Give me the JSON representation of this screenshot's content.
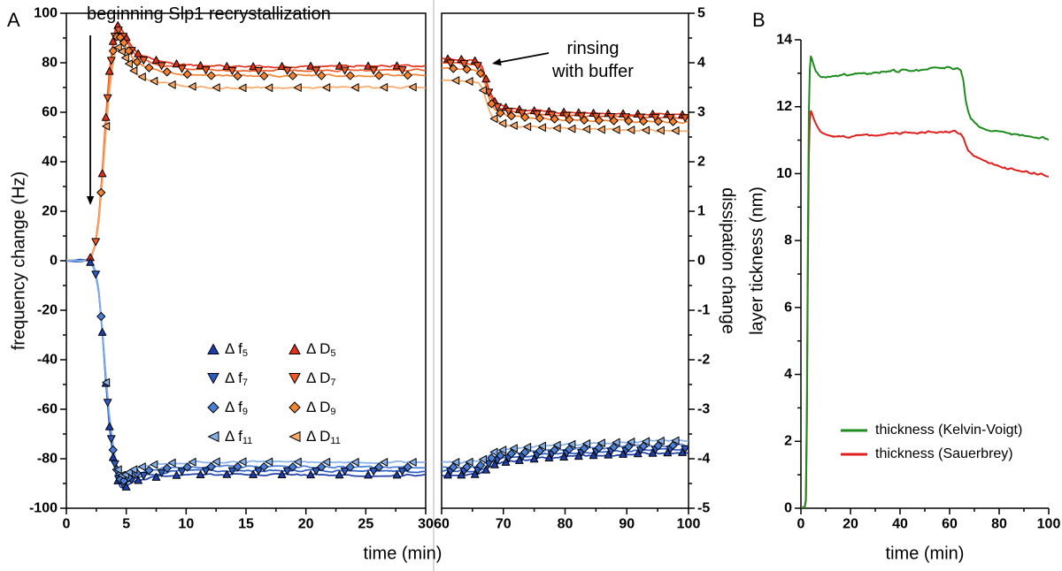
{
  "figure": {
    "panelA": {
      "label": "A",
      "axis": {
        "ylabel_left": "frequency change (Hz)",
        "ylabel_right": "dissipation change",
        "xlabel": "time (min)"
      },
      "annotation_recrystallization": "beginning Slp1 recrystallization",
      "annotation_rinsing_line1": "rinsing",
      "annotation_rinsing_line2": "with buffer",
      "legend": [
        {
          "prefix": "Δ f",
          "sub": "5",
          "color": "#1c3ea8",
          "marker": "triangle-up"
        },
        {
          "prefix": "Δ D",
          "sub": "5",
          "color": "#e03018",
          "marker": "triangle-up"
        },
        {
          "prefix": "Δ f",
          "sub": "7",
          "color": "#2b5cc4",
          "marker": "triangle-down"
        },
        {
          "prefix": "Δ D",
          "sub": "7",
          "color": "#ef5a24",
          "marker": "triangle-down"
        },
        {
          "prefix": "Δ f",
          "sub": "9",
          "color": "#4a7fd8",
          "marker": "diamond"
        },
        {
          "prefix": "Δ D",
          "sub": "9",
          "color": "#f5832e",
          "marker": "diamond"
        },
        {
          "prefix": "Δ f",
          "sub": "11",
          "color": "#85b0e8",
          "marker": "triangle-left"
        },
        {
          "prefix": "Δ D",
          "sub": "11",
          "color": "#f9a968",
          "marker": "triangle-left"
        }
      ]
    },
    "panelB": {
      "label": "B",
      "axis": {
        "ylabel": "layer tickness (nm)",
        "xlabel": "time (min)"
      }
    }
  },
  "chart_data": [
    {
      "type": "line",
      "panel": "A",
      "xlabel": "time (min)",
      "ylabel_left": "frequency change (Hz)",
      "ylabel_right": "dissipation change",
      "x_segments": [
        [
          0,
          30
        ],
        [
          60,
          100
        ]
      ],
      "axes": {
        "yleft": {
          "min": -100,
          "max": 100,
          "major": 20,
          "minor": 10
        },
        "yright": {
          "min": -5,
          "max": 5,
          "major": 1,
          "minor": 0.5
        },
        "xseg1": {
          "min": 0,
          "max": 30,
          "major": 5,
          "minor": 2.5
        },
        "xseg2": {
          "min": 60,
          "max": 100,
          "major": 10,
          "minor": 5
        }
      },
      "series_f": [
        {
          "name": "Δf5",
          "axis": "left",
          "color": "#1c3ea8",
          "marker": "triangle-up",
          "offset": -2.6
        },
        {
          "name": "Δf7",
          "axis": "left",
          "color": "#2b5cc4",
          "marker": "triangle-down",
          "offset": -1.0
        },
        {
          "name": "Δf9",
          "axis": "left",
          "color": "#4a7fd8",
          "marker": "diamond",
          "offset": 0.6
        },
        {
          "name": "Δf11",
          "axis": "left",
          "color": "#85b0e8",
          "marker": "triangle-left",
          "offset": 2.6
        }
      ],
      "series_d": [
        {
          "name": "ΔD5",
          "axis": "right",
          "color": "#e03018",
          "marker": "triangle-up",
          "offset": 0.13
        },
        {
          "name": "ΔD7",
          "axis": "right",
          "color": "#ef5a24",
          "marker": "triangle-down",
          "offset": 0.05
        },
        {
          "name": "ΔD9",
          "axis": "right",
          "color": "#f5832e",
          "marker": "diamond",
          "offset": -0.06
        },
        {
          "name": "ΔD11",
          "axis": "right",
          "color": "#f9a968",
          "marker": "triangle-left",
          "offset": -0.3
        }
      ],
      "freq_base_seg1": [
        [
          0,
          0
        ],
        [
          1,
          0
        ],
        [
          1.8,
          0
        ],
        [
          2.1,
          -1
        ],
        [
          2.4,
          -4
        ],
        [
          2.7,
          -12
        ],
        [
          3.0,
          -28
        ],
        [
          3.3,
          -48
        ],
        [
          3.6,
          -65
        ],
        [
          3.9,
          -77
        ],
        [
          4.2,
          -85
        ],
        [
          4.5,
          -89
        ],
        [
          4.8,
          -89.5
        ],
        [
          5.1,
          -88.5
        ],
        [
          5.5,
          -87.3
        ],
        [
          6,
          -86.2
        ],
        [
          7,
          -85.2
        ],
        [
          8,
          -84.6
        ],
        [
          9,
          -84.2
        ],
        [
          10,
          -84
        ],
        [
          12,
          -83.8
        ],
        [
          15,
          -83.8
        ],
        [
          20,
          -83.9
        ],
        [
          25,
          -84
        ],
        [
          30,
          -84
        ]
      ],
      "freq_base_seg2": [
        [
          60,
          -84
        ],
        [
          63,
          -84
        ],
        [
          65,
          -83.9
        ],
        [
          66,
          -83.6
        ],
        [
          66.8,
          -82.8
        ],
        [
          67.5,
          -81.3
        ],
        [
          68.2,
          -80.2
        ],
        [
          69,
          -79.5
        ],
        [
          70,
          -79
        ],
        [
          72,
          -78.3
        ],
        [
          75,
          -77.6
        ],
        [
          78,
          -77.1
        ],
        [
          80,
          -76.8
        ],
        [
          85,
          -76.2
        ],
        [
          90,
          -75.7
        ],
        [
          95,
          -75.3
        ],
        [
          100,
          -75
        ]
      ],
      "diss_base_seg1": [
        [
          0,
          0
        ],
        [
          1,
          0
        ],
        [
          1.8,
          0.02
        ],
        [
          2.1,
          0.08
        ],
        [
          2.4,
          0.3
        ],
        [
          2.7,
          0.8
        ],
        [
          3.0,
          1.7
        ],
        [
          3.3,
          2.8
        ],
        [
          3.6,
          3.7
        ],
        [
          3.9,
          4.3
        ],
        [
          4.1,
          4.55
        ],
        [
          4.3,
          4.62
        ],
        [
          4.6,
          4.55
        ],
        [
          5,
          4.38
        ],
        [
          5.5,
          4.18
        ],
        [
          6,
          4.05
        ],
        [
          7,
          3.95
        ],
        [
          8,
          3.89
        ],
        [
          9,
          3.85
        ],
        [
          10,
          3.83
        ],
        [
          12,
          3.8
        ],
        [
          15,
          3.79
        ],
        [
          20,
          3.8
        ],
        [
          25,
          3.8
        ],
        [
          30,
          3.81
        ]
      ],
      "diss_base_seg2": [
        [
          60,
          3.95
        ],
        [
          63,
          3.94
        ],
        [
          65,
          3.92
        ],
        [
          66,
          3.89
        ],
        [
          66.6,
          3.8
        ],
        [
          67.2,
          3.55
        ],
        [
          67.8,
          3.3
        ],
        [
          68.5,
          3.12
        ],
        [
          69.5,
          3.03
        ],
        [
          70.5,
          2.99
        ],
        [
          72,
          2.96
        ],
        [
          75,
          2.93
        ],
        [
          80,
          2.9
        ],
        [
          85,
          2.88
        ],
        [
          90,
          2.87
        ],
        [
          95,
          2.86
        ],
        [
          100,
          2.85
        ]
      ],
      "marker_times_seg1": [
        2.0,
        3.0,
        3.3,
        3.6,
        3.9,
        4.3,
        5.0,
        6.0,
        7.5,
        9.2,
        11.2,
        13.4,
        15.6,
        18.0,
        20.4,
        22.8,
        25.2,
        27.6
      ],
      "marker_times_seg2": [
        61,
        63.2,
        65.4,
        67.2,
        68.6,
        70.4,
        72.6,
        75,
        77.4,
        79.8,
        82.2,
        84.6,
        87,
        89.4,
        91.8,
        94.2,
        96.6,
        99
      ],
      "noise": {
        "freq": 0.6,
        "diss": 0.03
      },
      "annotations": [
        {
          "text": "beginning Slp1 recrystallization",
          "arrow_from_t": 2,
          "arrow_points_to": "start of frequency drop"
        },
        {
          "text": "rinsing with buffer",
          "arrow_points_to_t": 67,
          "arrow_points_to": "dissipation step down"
        }
      ]
    },
    {
      "type": "line",
      "panel": "B",
      "xlabel": "time (min)",
      "ylabel": "layer tickness (nm)",
      "axes": {
        "x": {
          "min": 0,
          "max": 100,
          "major": 20,
          "minor": 10
        },
        "y": {
          "min": 0,
          "max": 14,
          "major": 2,
          "minor": 1
        }
      },
      "noise": 0.05,
      "series": [
        {
          "name": "thickness (Kelvin-Voigt)",
          "color": "#1e8c1e",
          "points": [
            [
              0,
              0
            ],
            [
              1.5,
              0
            ],
            [
              2,
              0.3
            ],
            [
              2.4,
              3
            ],
            [
              2.8,
              8
            ],
            [
              3.2,
              11.8
            ],
            [
              3.6,
              13.1
            ],
            [
              4,
              13.5
            ],
            [
              4.4,
              13.45
            ],
            [
              5,
              13.3
            ],
            [
              6,
              13.08
            ],
            [
              7,
              12.98
            ],
            [
              8,
              12.92
            ],
            [
              10,
              12.88
            ],
            [
              12,
              12.9
            ],
            [
              15,
              12.93
            ],
            [
              20,
              12.97
            ],
            [
              25,
              13.0
            ],
            [
              30,
              13.02
            ],
            [
              35,
              13.05
            ],
            [
              40,
              13.07
            ],
            [
              45,
              13.09
            ],
            [
              50,
              13.11
            ],
            [
              55,
              13.13
            ],
            [
              60,
              13.15
            ],
            [
              63,
              13.15
            ],
            [
              64.5,
              13.1
            ],
            [
              65.5,
              12.8
            ],
            [
              66.5,
              12.2
            ],
            [
              67.5,
              11.85
            ],
            [
              68.5,
              11.65
            ],
            [
              70,
              11.5
            ],
            [
              72,
              11.4
            ],
            [
              75,
              11.3
            ],
            [
              80,
              11.22
            ],
            [
              85,
              11.17
            ],
            [
              90,
              11.12
            ],
            [
              95,
              11.08
            ],
            [
              100,
              11.05
            ]
          ]
        },
        {
          "name": "thickness (Sauerbrey)",
          "color": "#e01f1f",
          "points": [
            [
              0,
              0
            ],
            [
              1.5,
              0
            ],
            [
              2,
              0.2
            ],
            [
              2.4,
              2.5
            ],
            [
              2.8,
              7
            ],
            [
              3.2,
              10.5
            ],
            [
              3.6,
              11.6
            ],
            [
              4,
              11.88
            ],
            [
              4.4,
              11.82
            ],
            [
              5,
              11.7
            ],
            [
              6,
              11.5
            ],
            [
              7,
              11.35
            ],
            [
              8,
              11.25
            ],
            [
              10,
              11.17
            ],
            [
              12,
              11.13
            ],
            [
              15,
              11.1
            ],
            [
              20,
              11.12
            ],
            [
              25,
              11.14
            ],
            [
              30,
              11.16
            ],
            [
              40,
              11.2
            ],
            [
              50,
              11.23
            ],
            [
              60,
              11.25
            ],
            [
              63,
              11.25
            ],
            [
              64.5,
              11.2
            ],
            [
              65.5,
              11.05
            ],
            [
              66.5,
              10.85
            ],
            [
              67.5,
              10.7
            ],
            [
              68.5,
              10.6
            ],
            [
              70,
              10.5
            ],
            [
              72,
              10.42
            ],
            [
              75,
              10.32
            ],
            [
              80,
              10.22
            ],
            [
              85,
              10.14
            ],
            [
              90,
              10.07
            ],
            [
              95,
              10.0
            ],
            [
              100,
              9.95
            ]
          ]
        }
      ]
    }
  ]
}
